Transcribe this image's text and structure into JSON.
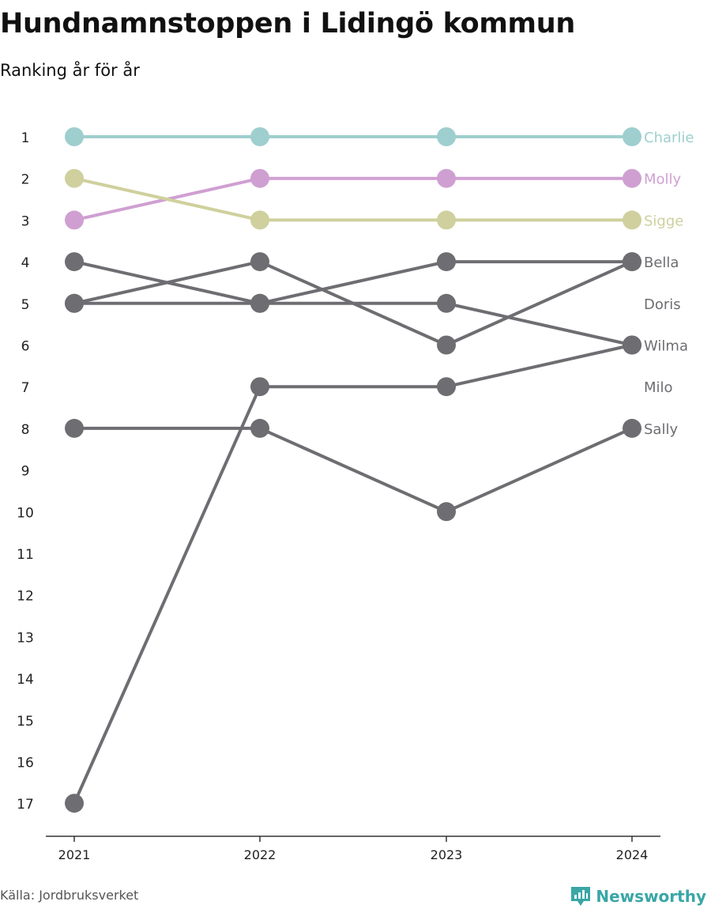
{
  "header": {
    "title": "Hundnamnstoppen i Lidingö kommun",
    "subtitle": "Ranking år för år"
  },
  "footer": {
    "source": "Källa: Jordbruksverket",
    "brand": "Newsworthy",
    "brand_icon": "newsworthy-logo-icon"
  },
  "colors": {
    "Charlie": "#9ecfce",
    "Molly": "#cf9fd2",
    "Sigge": "#cfd09d",
    "default": "#6e6d72",
    "axis": "#333333",
    "tick_text": "#222222"
  },
  "chart_data": {
    "type": "line",
    "subtype": "bump",
    "x": [
      "2021",
      "2022",
      "2023",
      "2024"
    ],
    "y_ticks": [
      "1",
      "2",
      "3",
      "4",
      "5",
      "6",
      "7",
      "8",
      "9",
      "10",
      "11",
      "12",
      "13",
      "14",
      "15",
      "16",
      "17"
    ],
    "ylim": [
      1,
      17
    ],
    "y_reversed": true,
    "grid": false,
    "legend": "end-labels",
    "series": [
      {
        "name": "Charlie",
        "values": [
          1,
          1,
          1,
          1
        ]
      },
      {
        "name": "Molly",
        "values": [
          3,
          2,
          2,
          2
        ]
      },
      {
        "name": "Sigge",
        "values": [
          2,
          3,
          3,
          3
        ]
      },
      {
        "name": "Bella",
        "values": [
          5,
          4,
          6,
          4
        ]
      },
      {
        "name": "Doris",
        "values": [
          5,
          5,
          4,
          4
        ]
      },
      {
        "name": "Wilma",
        "values": [
          4,
          5,
          5,
          6
        ]
      },
      {
        "name": "Milo",
        "values": [
          17,
          7,
          7,
          6
        ]
      },
      {
        "name": "Sally",
        "values": [
          8,
          8,
          10,
          8
        ]
      }
    ],
    "end_labels": [
      {
        "name": "Charlie",
        "rank": 1
      },
      {
        "name": "Molly",
        "rank": 2
      },
      {
        "name": "Sigge",
        "rank": 3
      },
      {
        "name": "Bella",
        "rank": 4
      },
      {
        "name": "Doris",
        "rank": 5
      },
      {
        "name": "Wilma",
        "rank": 6
      },
      {
        "name": "Milo",
        "rank": 7
      },
      {
        "name": "Sally",
        "rank": 8
      }
    ]
  }
}
